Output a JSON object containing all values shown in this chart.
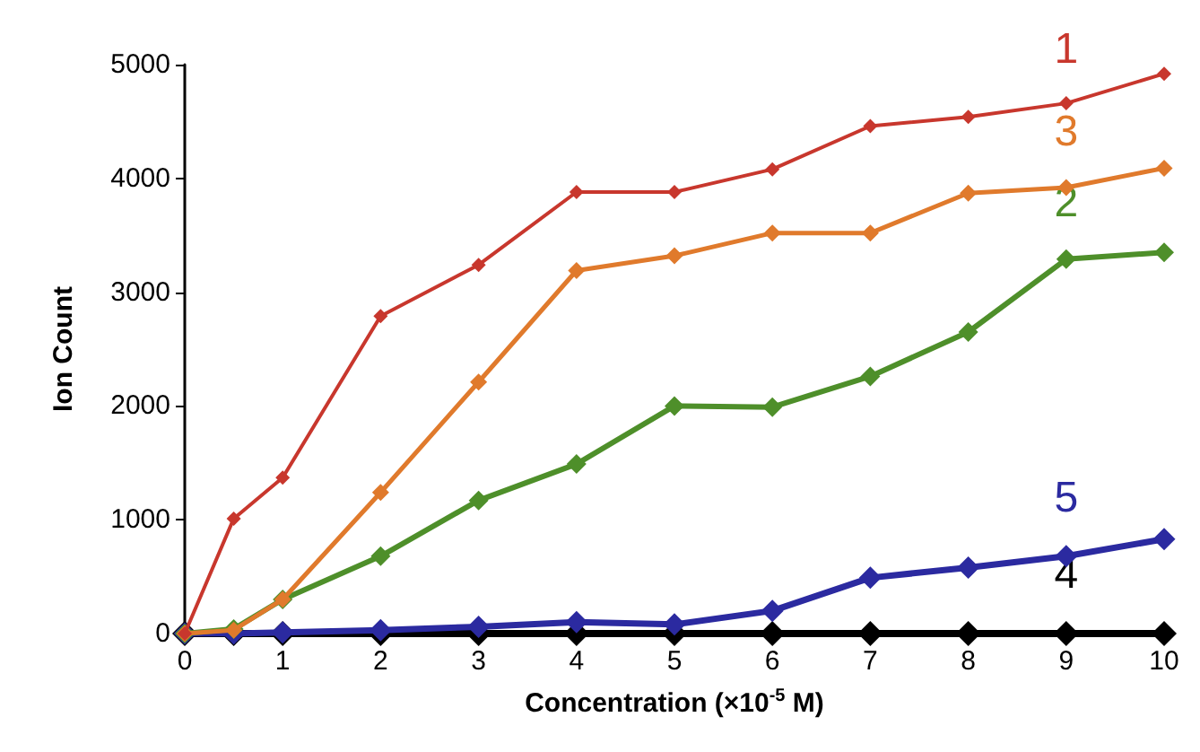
{
  "chart_data": {
    "type": "line",
    "xlabel": "Concentration (×10$^{-5}$ M)",
    "ylabel": "Ion Count",
    "x": [
      0,
      0.5,
      1,
      2,
      3,
      4,
      5,
      6,
      7,
      8,
      9,
      10
    ],
    "series": [
      {
        "name": "1",
        "color": "#c8372d",
        "values": [
          0,
          1010,
          1370,
          2790,
          3240,
          3880,
          3880,
          4080,
          4460,
          4540,
          4660,
          4920
        ]
      },
      {
        "name": "3",
        "color": "#e07a2c",
        "values": [
          0,
          30,
          300,
          1240,
          2210,
          3190,
          3320,
          3520,
          3520,
          3870,
          3920,
          4090
        ]
      },
      {
        "name": "2",
        "color": "#4e8f2a",
        "values": [
          0,
          40,
          300,
          680,
          1170,
          1490,
          2000,
          1990,
          2260,
          2650,
          3290,
          3350
        ]
      },
      {
        "name": "5",
        "color": "#2b2aa0",
        "values": [
          0,
          0,
          10,
          30,
          60,
          100,
          80,
          200,
          490,
          580,
          680,
          830
        ]
      },
      {
        "name": "4",
        "color": "#000000",
        "values": [
          0,
          0,
          0,
          0,
          0,
          0,
          0,
          0,
          0,
          0,
          0,
          0
        ]
      }
    ],
    "xlim": [
      0,
      10
    ],
    "xticks": [
      0,
      1,
      2,
      3,
      4,
      5,
      6,
      7,
      8,
      9,
      10
    ],
    "ylim": [
      0,
      5000
    ],
    "yticks": [
      0,
      1000,
      2000,
      3000,
      4000,
      5000
    ],
    "grid": false,
    "legend": false,
    "marker": "diamond",
    "line_style": "solid"
  }
}
